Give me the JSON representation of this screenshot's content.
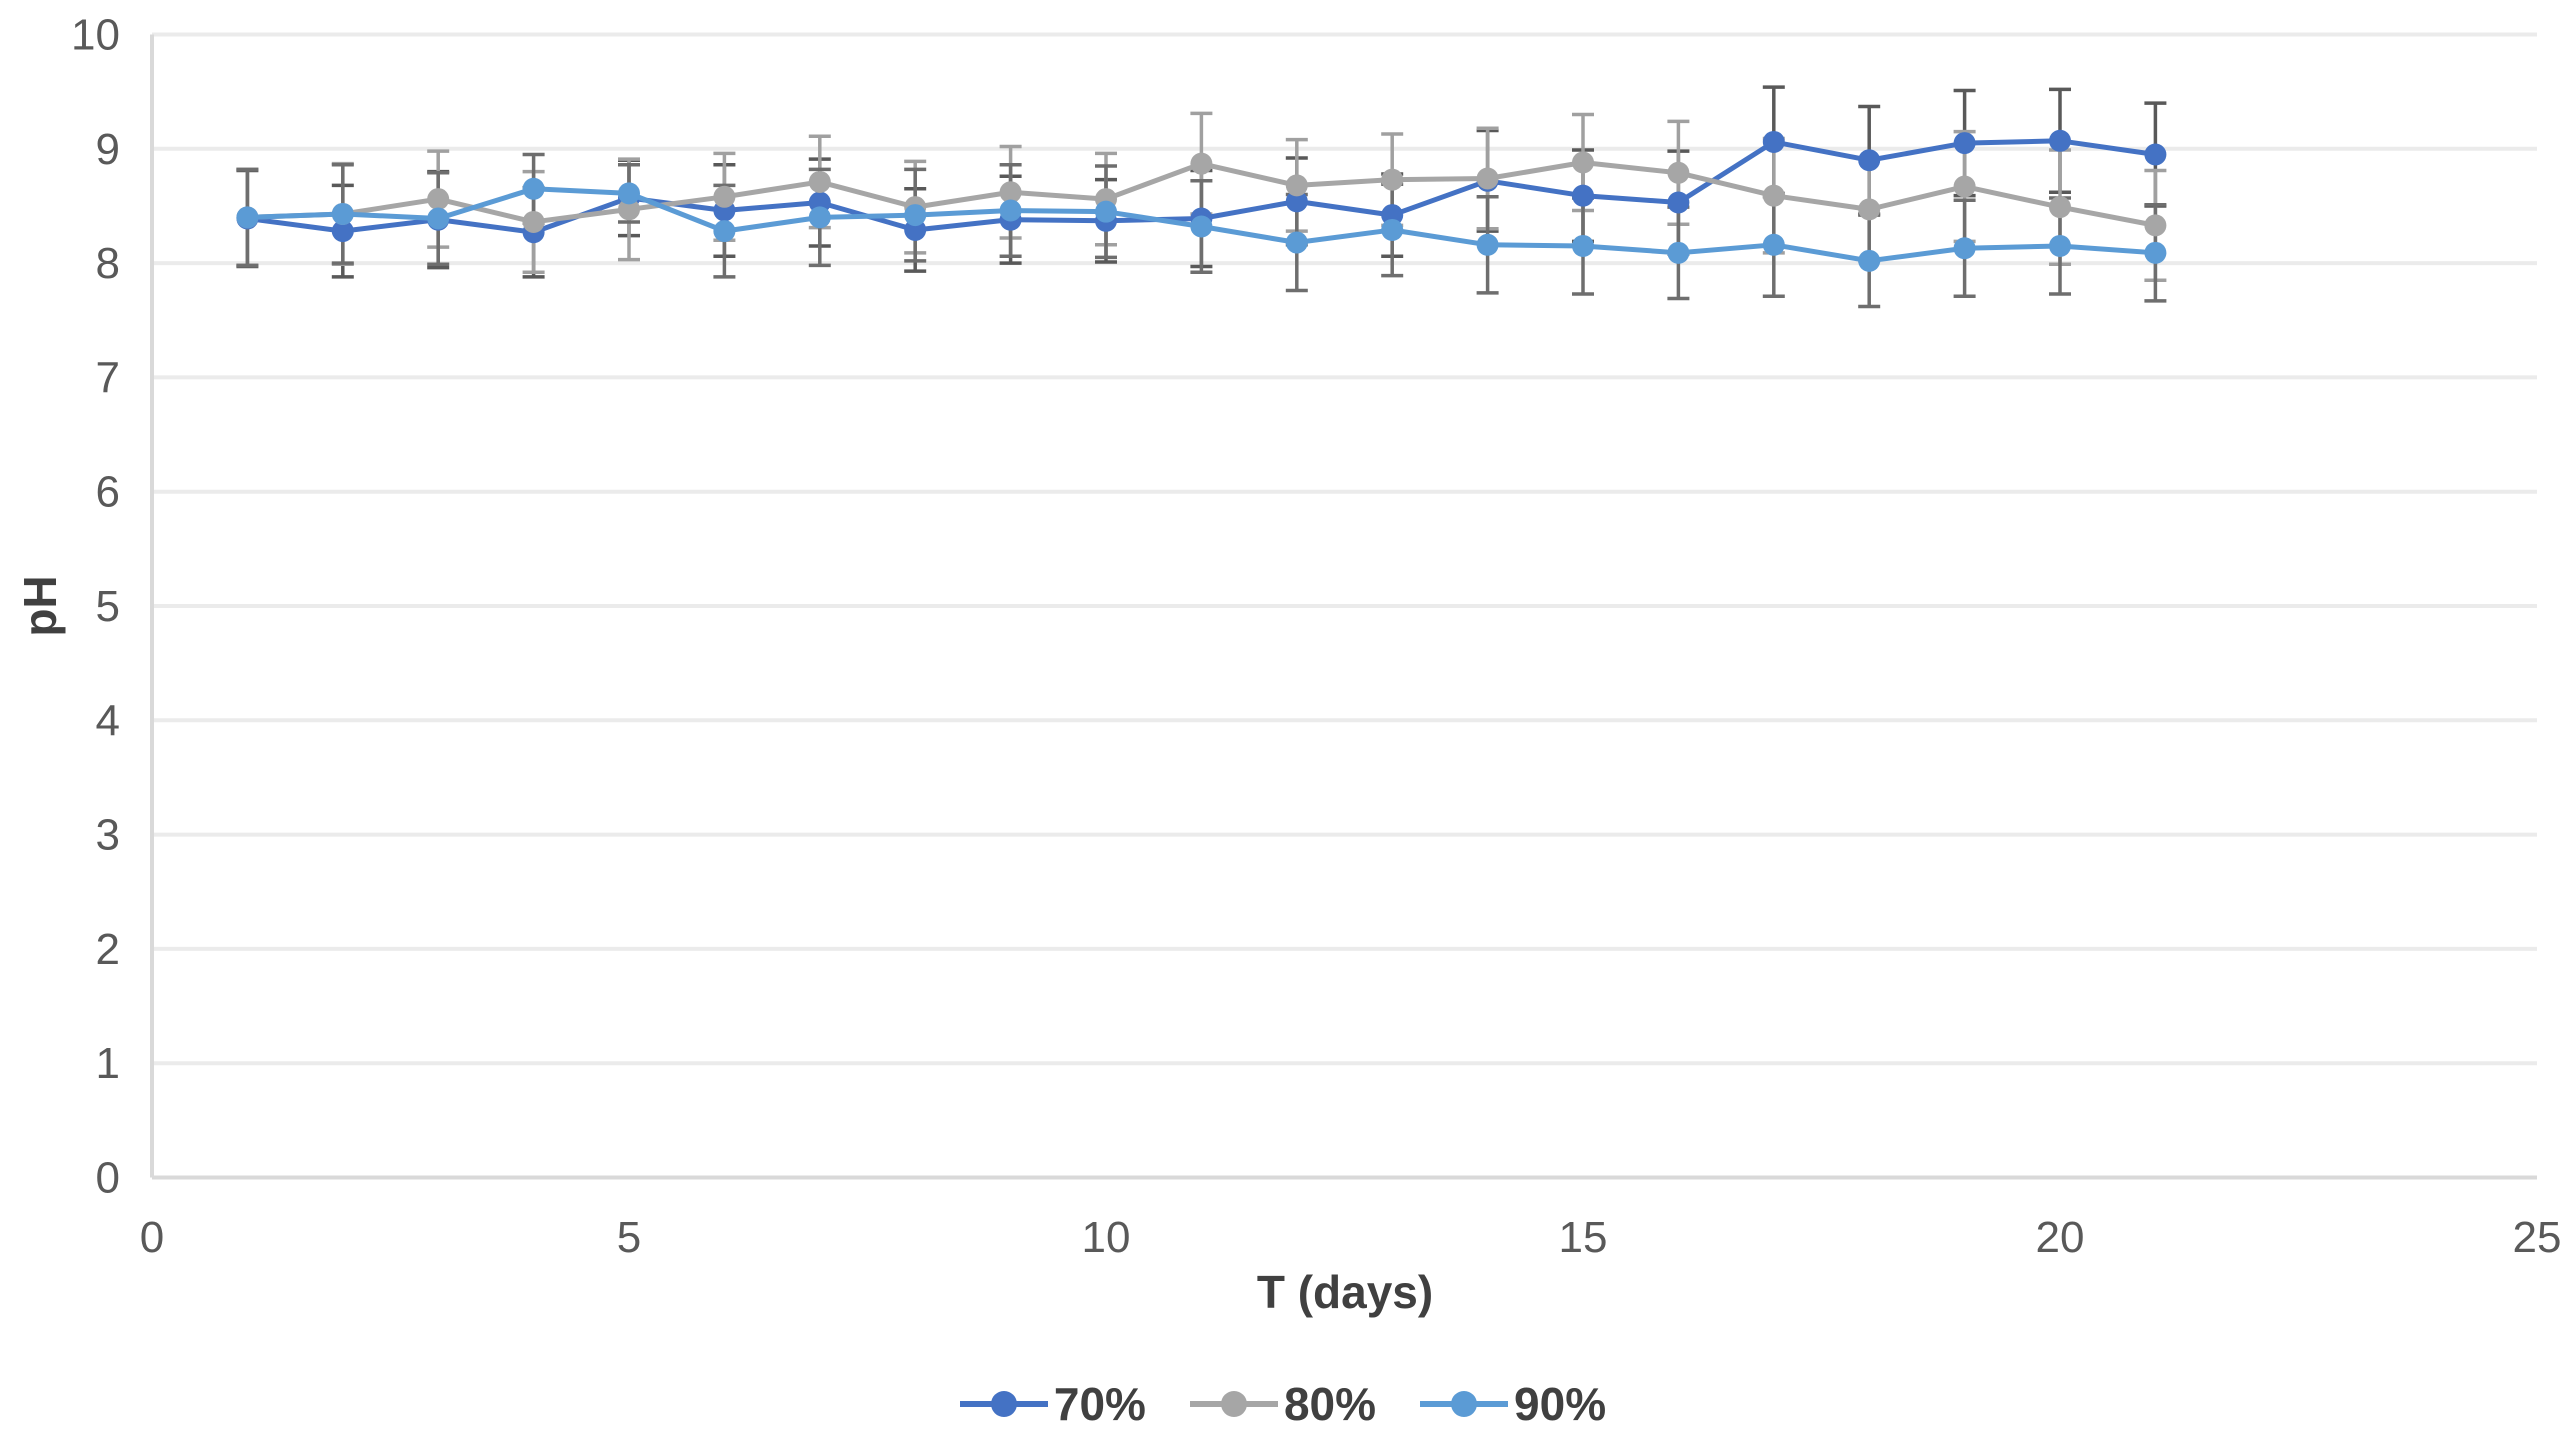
{
  "chart_data": {
    "type": "line",
    "title": "",
    "xlabel": "T (days)",
    "ylabel": "pH",
    "xlim": [
      0,
      25
    ],
    "ylim": [
      0,
      10
    ],
    "xticks": [
      0,
      5,
      10,
      15,
      20,
      25
    ],
    "yticks": [
      0,
      1,
      2,
      3,
      4,
      5,
      6,
      7,
      8,
      9,
      10
    ],
    "grid": "horizontal-light",
    "legend_position": "bottom-center",
    "error_bars": true,
    "x": [
      1,
      2,
      3,
      4,
      5,
      6,
      7,
      8,
      9,
      10,
      11,
      12,
      13,
      14,
      15,
      16,
      17,
      18,
      19,
      20,
      21
    ],
    "series": [
      {
        "name": "70%",
        "color": "#4472C4",
        "error_color": "#595959",
        "values": [
          8.39,
          8.28,
          8.38,
          8.27,
          8.57,
          8.46,
          8.53,
          8.29,
          8.38,
          8.37,
          8.39,
          8.54,
          8.42,
          8.72,
          8.59,
          8.53,
          9.06,
          8.9,
          9.05,
          9.07,
          8.95
        ],
        "errors": [
          0.42,
          0.4,
          0.42,
          0.39,
          0.33,
          0.4,
          0.38,
          0.36,
          0.38,
          0.36,
          0.42,
          0.38,
          0.36,
          0.44,
          0.4,
          0.45,
          0.48,
          0.47,
          0.46,
          0.45,
          0.45
        ]
      },
      {
        "name": "80%",
        "color": "#A6A6A6",
        "error_color": "#A0A0A0",
        "values": [
          8.4,
          8.43,
          8.56,
          8.36,
          8.47,
          8.58,
          8.71,
          8.49,
          8.62,
          8.56,
          8.87,
          8.68,
          8.73,
          8.74,
          8.88,
          8.79,
          8.59,
          8.47,
          8.67,
          8.49,
          8.33
        ],
        "errors": [
          0.42,
          0.44,
          0.42,
          0.44,
          0.44,
          0.38,
          0.4,
          0.4,
          0.4,
          0.4,
          0.44,
          0.4,
          0.4,
          0.44,
          0.42,
          0.45,
          0.5,
          0.45,
          0.48,
          0.5,
          0.48
        ]
      },
      {
        "name": "90%",
        "color": "#5B9BD5",
        "error_color": "#6E6E6E",
        "values": [
          8.4,
          8.43,
          8.39,
          8.65,
          8.61,
          8.28,
          8.4,
          8.42,
          8.46,
          8.45,
          8.32,
          8.18,
          8.29,
          8.16,
          8.15,
          8.09,
          8.16,
          8.02,
          8.13,
          8.15,
          8.09
        ],
        "errors": [
          0.42,
          0.43,
          0.4,
          0.3,
          0.25,
          0.4,
          0.42,
          0.4,
          0.4,
          0.4,
          0.4,
          0.42,
          0.4,
          0.42,
          0.42,
          0.4,
          0.45,
          0.4,
          0.42,
          0.42,
          0.42
        ]
      }
    ],
    "style": {
      "grid_color": "#EBEBEB",
      "axis_color": "#D9D9D9",
      "tick_label_color": "#595959",
      "title_color": "#404040"
    }
  }
}
